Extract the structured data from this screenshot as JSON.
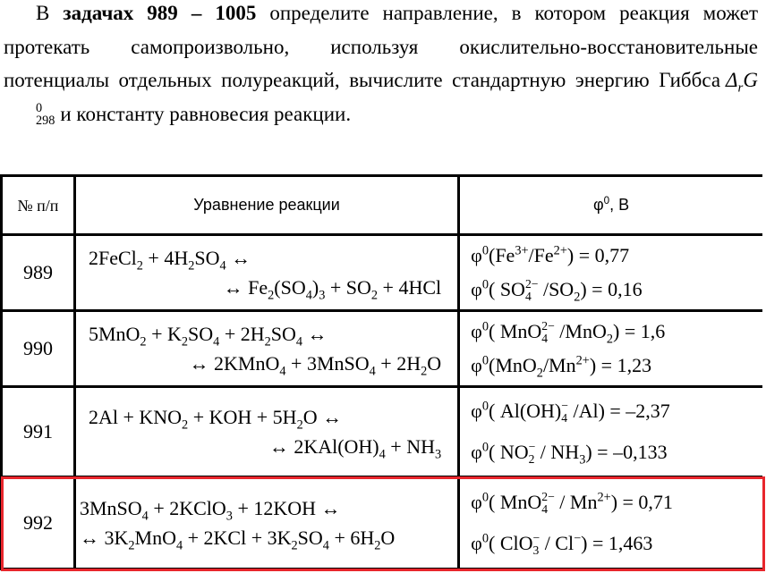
{
  "intro": {
    "prefix": "В ",
    "bold": "задачах 989 – 1005",
    "text1": " определите направление, в котором реакция может протекать самопроизвольно, используя окислительно-восстановительные потенциалы отдельных полуреакций, вычислите стандартную энергию Гиббса",
    "gibbs": "Δ_{r}~{298|0}G",
    "text2": "и константу равновесия реакции."
  },
  "table": {
    "headers": {
      "number": "№ п/п",
      "equation": "Уравнение реакции",
      "potential": "φ^{0}, В"
    },
    "rows": [
      {
        "number": "989",
        "eq1": "2FeCl_{2} + 4H_{2}SO_{4} ↔",
        "eq2": "↔ Fe_{2}(SO_{4})_{3} + SO_{2} + 4HCl",
        "pot1": "φ^{0}(Fe^{3+}/Fe^{2+}) = 0,77",
        "pot2": "φ^{0}( SO~{4|2−} /SO_{2}) = 0,16",
        "highlighted": false
      },
      {
        "number": "990",
        "eq1": "5MnO_{2} + K_{2}SO_{4} + 2H_{2}SO_{4} ↔",
        "eq2": "↔ 2KMnO_{4} + 3MnSO_{4} + 2H_{2}O",
        "pot1": "φ^{0}( MnO~{4|2−} /MnO_{2}) = 1,6",
        "pot2": "φ^{0}(MnO_{2}/Mn^{2+}) = 1,23",
        "highlighted": false
      },
      {
        "number": "991",
        "eq1": "2Al + KNO_{2} + KOH + 5H_{2}O ↔",
        "eq2": "↔ 2KAl(OH)_{4} + NH_{3}",
        "pot1": "φ^{0}( Al(OH)~{4|−} /Al) = –2,37",
        "pot2": "φ^{0}( NO~{2|−} / NH_{3}) = –0,133",
        "highlighted": false
      },
      {
        "number": "992",
        "eq1": "3MnSO_{4} + 2KClO_{3} + 12KOH ↔",
        "eq2": "↔ 3K_{2}MnO_{4} + 2KCl + 3K_{2}SO_{4} + 6H_{2}O",
        "pot1": "φ^{0}( MnO~{4|2−} / Mn^{2+}) = 0,71",
        "pot2": "φ^{0}( ClO~{3|−} / Cl^{−}) = 1,463",
        "highlighted": true
      }
    ]
  },
  "colors": {
    "highlight": "#e8262c"
  }
}
